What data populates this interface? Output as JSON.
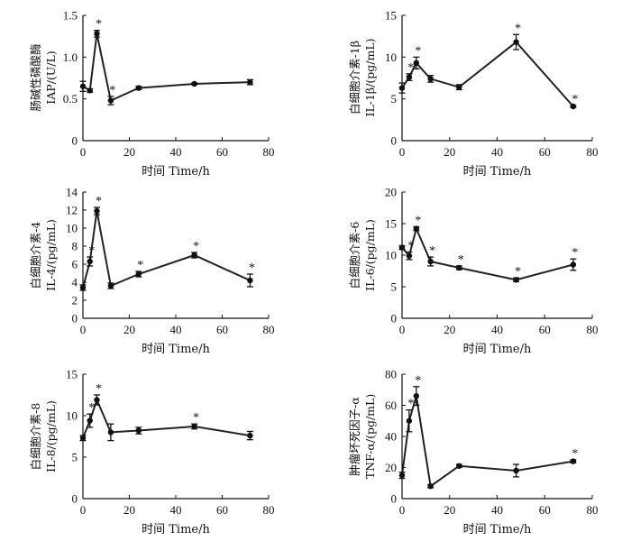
{
  "chart_data": [
    {
      "type": "line",
      "ylabel_lines": [
        "肠碱性磷酸酶",
        "IAP/(U/L)"
      ],
      "xlabel": "时间 Time/h",
      "xlim": [
        0,
        80
      ],
      "ylim": [
        0,
        1.5
      ],
      "xticks": [
        "0",
        "20",
        "40",
        "60",
        "80"
      ],
      "yticks": [
        "0",
        "0.5",
        "1.0",
        "1.5"
      ],
      "x": [
        0,
        3,
        6,
        12,
        24,
        48,
        72
      ],
      "y": [
        0.65,
        0.6,
        1.28,
        0.48,
        0.63,
        0.68,
        0.7
      ],
      "err": [
        0.06,
        0.02,
        0.04,
        0.05,
        0.02,
        0.01,
        0.03
      ],
      "significant": [
        false,
        false,
        true,
        true,
        false,
        false,
        false
      ]
    },
    {
      "type": "line",
      "ylabel_lines": [
        "白细胞介素-1β",
        "IL-1β/(pg/mL)"
      ],
      "xlabel": "时间 Time/h",
      "xlim": [
        0,
        80
      ],
      "ylim": [
        0,
        15
      ],
      "xticks": [
        "0",
        "20",
        "40",
        "60",
        "80"
      ],
      "yticks": [
        "0",
        "5",
        "10",
        "15"
      ],
      "x": [
        0,
        3,
        6,
        12,
        24,
        48,
        72
      ],
      "y": [
        6.3,
        7.6,
        9.3,
        7.4,
        6.4,
        11.8,
        4.1
      ],
      "err": [
        0.6,
        0.4,
        0.7,
        0.4,
        0.3,
        0.9,
        0.1
      ],
      "significant": [
        false,
        true,
        true,
        false,
        false,
        true,
        true
      ]
    },
    {
      "type": "line",
      "ylabel_lines": [
        "白细胞介素-4",
        "IL-4/(pg/mL)"
      ],
      "xlabel": "时间 Time/h",
      "xlim": [
        0,
        80
      ],
      "ylim": [
        0,
        14
      ],
      "xticks": [
        "0",
        "20",
        "40",
        "60",
        "80"
      ],
      "yticks": [
        "0",
        "2",
        "4",
        "6",
        "8",
        "10",
        "12",
        "14"
      ],
      "x": [
        0,
        3,
        6,
        12,
        24,
        48,
        72
      ],
      "y": [
        3.4,
        6.3,
        11.9,
        3.6,
        4.9,
        7.0,
        4.2
      ],
      "err": [
        0.3,
        0.5,
        0.4,
        0.3,
        0.3,
        0.3,
        0.7
      ],
      "significant": [
        false,
        true,
        true,
        false,
        true,
        true,
        true
      ]
    },
    {
      "type": "line",
      "ylabel_lines": [
        "白细胞介素-6",
        "IL-6/(pg/mL)"
      ],
      "xlabel": "时间 Time/h",
      "xlim": [
        0,
        80
      ],
      "ylim": [
        0,
        20
      ],
      "xticks": [
        "0",
        "20",
        "40",
        "60",
        "80"
      ],
      "yticks": [
        "0",
        "5",
        "10",
        "15",
        "20"
      ],
      "x": [
        0,
        3,
        6,
        12,
        24,
        48,
        72
      ],
      "y": [
        11.2,
        9.9,
        14.2,
        9.0,
        8.0,
        6.1,
        8.5
      ],
      "err": [
        0.3,
        0.6,
        0.3,
        0.7,
        0.3,
        0.3,
        0.9
      ],
      "significant": [
        false,
        true,
        true,
        true,
        true,
        true,
        true
      ]
    },
    {
      "type": "line",
      "ylabel_lines": [
        "白细胞介素-8",
        "IL-8/(pg/mL)"
      ],
      "xlabel": "时间 Time/h",
      "xlim": [
        0,
        80
      ],
      "ylim": [
        0,
        15
      ],
      "xticks": [
        "0",
        "20",
        "40",
        "60",
        "80"
      ],
      "yticks": [
        "0",
        "5",
        "10",
        "15"
      ],
      "x": [
        0,
        3,
        6,
        12,
        24,
        48,
        72
      ],
      "y": [
        7.3,
        9.4,
        11.9,
        8.0,
        8.2,
        8.7,
        7.6
      ],
      "err": [
        0.3,
        0.8,
        0.6,
        1.0,
        0.4,
        0.3,
        0.5
      ],
      "significant": [
        false,
        true,
        true,
        false,
        false,
        true,
        false
      ]
    },
    {
      "type": "line",
      "ylabel_lines": [
        "肿瘤坏死因子-α",
        "TNF-α/(pg/mL)"
      ],
      "xlabel": "时间 Time/h",
      "xlim": [
        0,
        80
      ],
      "ylim": [
        0,
        80
      ],
      "xticks": [
        "0",
        "20",
        "40",
        "60",
        "80"
      ],
      "yticks": [
        "0",
        "20",
        "40",
        "60",
        "80"
      ],
      "x": [
        0,
        3,
        6,
        12,
        24,
        48,
        72
      ],
      "y": [
        15,
        50,
        66,
        8,
        21,
        18,
        24
      ],
      "err": [
        2,
        7,
        6,
        1,
        1,
        4,
        1
      ],
      "significant": [
        false,
        true,
        true,
        false,
        false,
        false,
        true
      ]
    }
  ]
}
